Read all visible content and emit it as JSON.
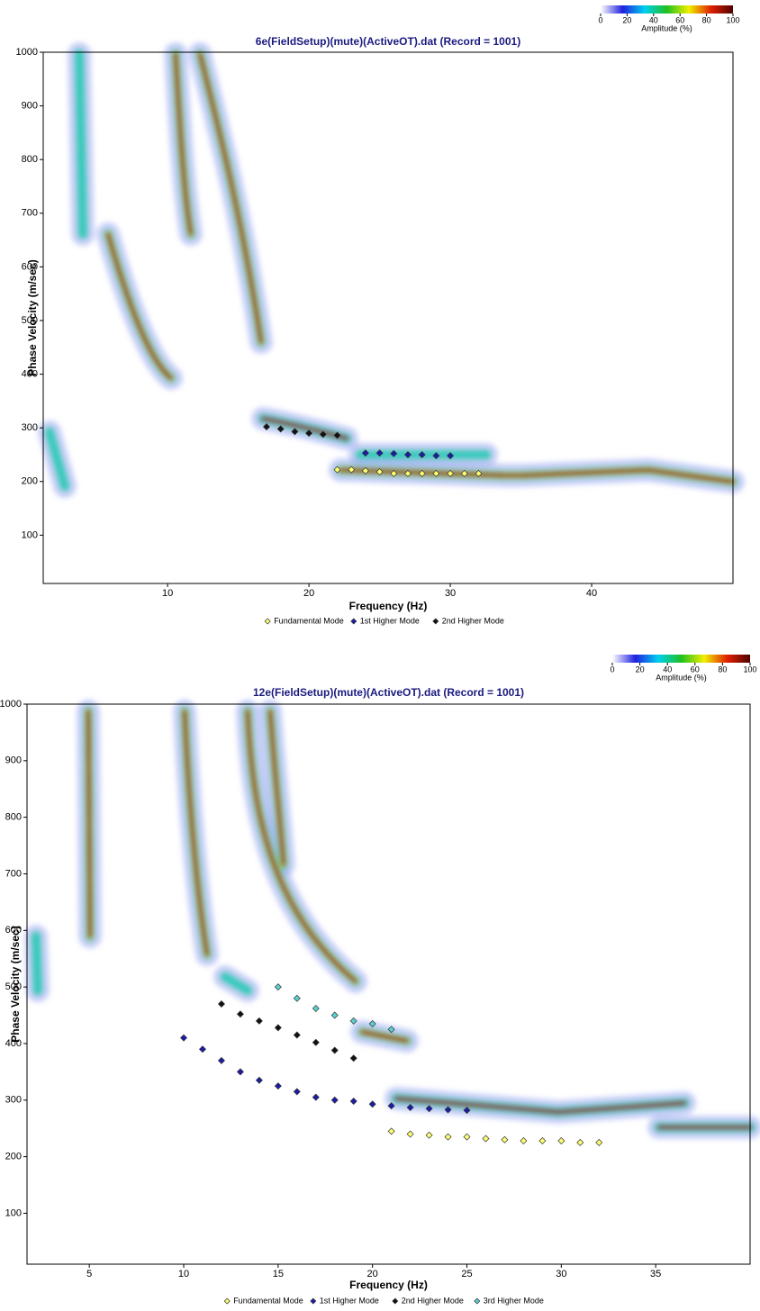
{
  "chart_data": [
    {
      "type": "scatter",
      "title": "6e(FieldSetup)(mute)(ActiveOT).dat (Record = 1001)",
      "x_label": "Frequency (Hz)",
      "y_label": "Phase Velocity (m/sec)",
      "xlim": [
        1.2,
        50
      ],
      "ylim": [
        10,
        1000
      ],
      "xticks": [
        10,
        20,
        30,
        40
      ],
      "yticks": [
        100,
        200,
        300,
        400,
        500,
        600,
        700,
        800,
        900,
        1000
      ],
      "colorbar": {
        "label": "Amplitude (%)",
        "lim": [
          0,
          100
        ],
        "ticks": [
          0,
          20,
          40,
          60,
          80,
          100
        ],
        "colors": [
          "#ffffff",
          "#2020e0",
          "#00d0f0",
          "#20c020",
          "#f0f000",
          "#e02000",
          "#500000"
        ]
      },
      "series": [
        {
          "name": "Fundamental Mode",
          "color": "#ffff70",
          "x": [
            22,
            23,
            24,
            25,
            26,
            27,
            28,
            29,
            30,
            31,
            32
          ],
          "values": [
            222,
            222,
            220,
            218,
            215,
            215,
            215,
            215,
            215,
            215,
            215
          ]
        },
        {
          "name": "1st Higher Mode",
          "color": "#1c1ca8",
          "x": [
            24,
            25,
            26,
            27,
            28,
            29,
            30
          ],
          "values": [
            253,
            253,
            252,
            250,
            250,
            248,
            248
          ]
        },
        {
          "name": "2nd Higher Mode",
          "color": "#111111",
          "x": [
            17,
            18,
            19,
            20,
            21,
            22
          ],
          "values": [
            302,
            298,
            293,
            290,
            288,
            286
          ]
        }
      ]
    },
    {
      "type": "scatter",
      "title": "12e(FieldSetup)(mute)(ActiveOT).dat (Record = 1001)",
      "x_label": "Frequency (Hz)",
      "y_label": "Phase Velocity (m/sec)",
      "xlim": [
        1.7,
        40
      ],
      "ylim": [
        10,
        1000
      ],
      "xticks": [
        5,
        10,
        15,
        20,
        25,
        30,
        35
      ],
      "yticks": [
        100,
        200,
        300,
        400,
        500,
        600,
        700,
        800,
        900,
        1000
      ],
      "colorbar": {
        "label": "Amplitude (%)",
        "lim": [
          0,
          100
        ],
        "ticks": [
          0,
          20,
          40,
          60,
          80,
          100
        ],
        "colors": [
          "#ffffff",
          "#2020e0",
          "#00d0f0",
          "#20c020",
          "#f0f000",
          "#e02000",
          "#500000"
        ]
      },
      "series": [
        {
          "name": "Fundamental Mode",
          "color": "#ffff70",
          "x": [
            21,
            22,
            23,
            24,
            25,
            26,
            27,
            28,
            29,
            30,
            31,
            32
          ],
          "values": [
            245,
            240,
            238,
            235,
            235,
            232,
            230,
            228,
            228,
            228,
            225,
            225
          ]
        },
        {
          "name": "1st Higher Mode",
          "color": "#1c1ca8",
          "x": [
            10,
            11,
            12,
            13,
            14,
            15,
            16,
            17,
            18,
            19,
            20,
            21,
            22,
            23,
            24,
            25
          ],
          "values": [
            410,
            390,
            370,
            350,
            335,
            325,
            315,
            305,
            300,
            298,
            293,
            290,
            287,
            285,
            283,
            282
          ]
        },
        {
          "name": "2nd Higher Mode",
          "color": "#111111",
          "x": [
            12,
            13,
            14,
            15,
            16,
            17,
            18,
            19
          ],
          "values": [
            470,
            452,
            440,
            428,
            415,
            402,
            388,
            374
          ]
        },
        {
          "name": "3rd Higher Mode",
          "color": "#5ad0d0",
          "x": [
            15,
            16,
            17,
            18,
            19,
            20,
            21
          ],
          "values": [
            500,
            480,
            462,
            450,
            440,
            435,
            425
          ]
        }
      ]
    }
  ]
}
